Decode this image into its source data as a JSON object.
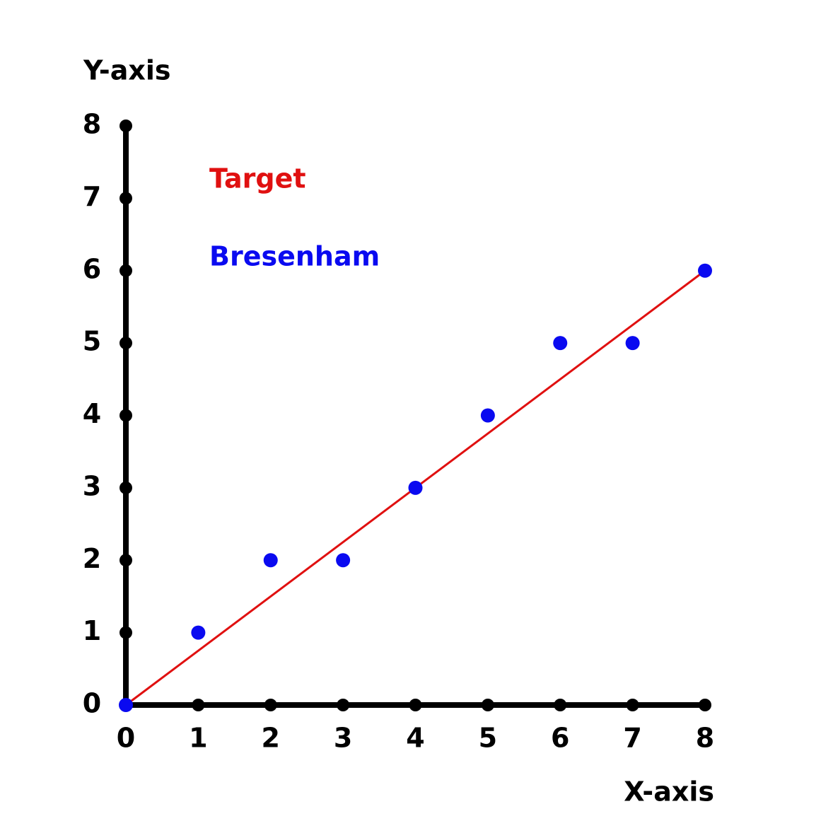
{
  "chart_data": {
    "type": "scatter",
    "x_label": "X-axis",
    "y_label": "Y-axis",
    "xlim": [
      0,
      8
    ],
    "ylim": [
      0,
      8
    ],
    "xticks": [
      0,
      1,
      2,
      3,
      4,
      5,
      6,
      7,
      8
    ],
    "yticks": [
      0,
      1,
      2,
      3,
      4,
      5,
      6,
      7,
      8
    ],
    "series": [
      {
        "name": "Target",
        "color": "#e01010",
        "type": "line",
        "x": [
          0,
          8
        ],
        "values": [
          0,
          6
        ]
      },
      {
        "name": "Bresenham",
        "color": "#0a0af0",
        "type": "scatter",
        "x": [
          0,
          1,
          2,
          3,
          4,
          5,
          6,
          7,
          8
        ],
        "values": [
          0,
          1,
          2,
          2,
          3,
          4,
          5,
          5,
          6
        ]
      }
    ]
  }
}
